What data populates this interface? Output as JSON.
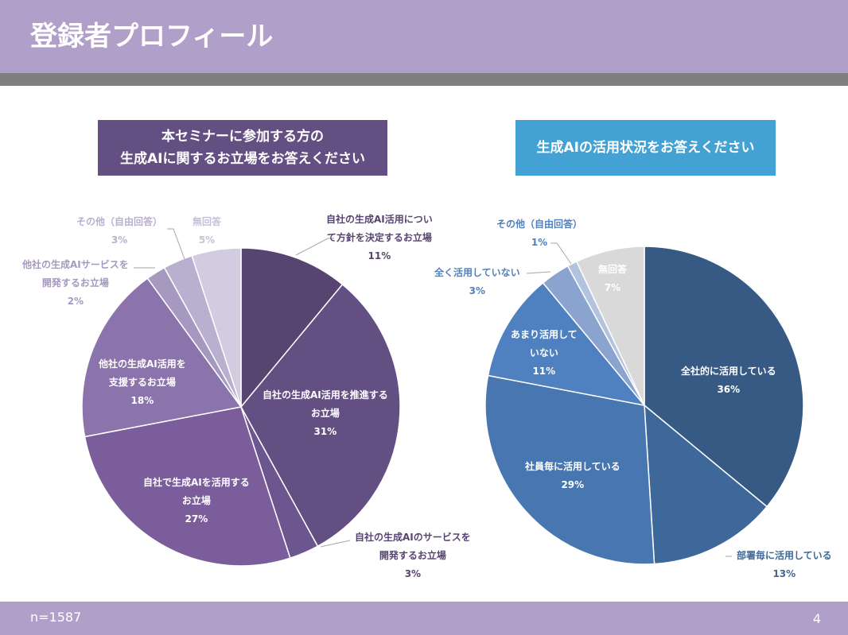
{
  "title": "登録者プロフィール",
  "left": {
    "question": [
      "本セミナーに参加する方の",
      "生成AIに関するお立場をお答えください"
    ],
    "slices": [
      {
        "label": [
          "自社の生成AI活用につい",
          "て方針を決定するお立場"
        ],
        "pct": "11%",
        "value": 11,
        "color": "#574470"
      },
      {
        "label": [
          "自社の生成AI活用を推進する",
          "お立場"
        ],
        "pct": "31%",
        "value": 31,
        "color": "#644f82"
      },
      {
        "label": [
          "自社の生成AIのサービスを",
          "開発するお立場"
        ],
        "pct": "3%",
        "value": 3,
        "color": "#6d5690"
      },
      {
        "label": [
          "自社で生成AIを活用する",
          "お立場"
        ],
        "pct": "27%",
        "value": 27,
        "color": "#7a5d9a"
      },
      {
        "label": [
          "他社の生成AI活用を",
          "支援するお立場"
        ],
        "pct": "18%",
        "value": 18,
        "color": "#8b73ab"
      },
      {
        "label": [
          "他社の生成AIサービスを",
          "開発するお立場"
        ],
        "pct": "2%",
        "value": 2,
        "color": "#a699bf"
      },
      {
        "label": [
          "その他（自由回答）"
        ],
        "pct": "3%",
        "value": 3,
        "color": "#b9afcf"
      },
      {
        "label": [
          "無回答"
        ],
        "pct": "5%",
        "value": 5,
        "color": "#d3cce0"
      }
    ]
  },
  "right": {
    "question": [
      "生成AIの活用状況をお答えください"
    ],
    "slices": [
      {
        "label": [
          "全社的に活用している"
        ],
        "pct": "36%",
        "value": 36,
        "color": "#375a85"
      },
      {
        "label": [
          "部署毎に活用している"
        ],
        "pct": "13%",
        "value": 13,
        "color": "#3e6899"
      },
      {
        "label": [
          "社員毎に活用している"
        ],
        "pct": "29%",
        "value": 29,
        "color": "#4776b0"
      },
      {
        "label": [
          "あまり活用して",
          "いない"
        ],
        "pct": "11%",
        "value": 11,
        "color": "#4f80c0"
      },
      {
        "label": [
          "全く活用していない"
        ],
        "pct": "3%",
        "value": 3,
        "color": "#8aa4cf"
      },
      {
        "label": [
          "その他（自由回答）"
        ],
        "pct": "1%",
        "value": 1,
        "color": "#b3c3df"
      },
      {
        "label": [
          "無回答"
        ],
        "pct": "7%",
        "value": 7,
        "color": "#d9d9d9"
      }
    ]
  },
  "footer": {
    "n": "n=1587",
    "page": "4"
  }
}
